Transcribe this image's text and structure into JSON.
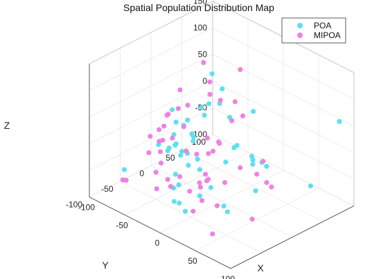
{
  "chart_data": {
    "type": "scatter",
    "projection": "3d",
    "title": "Spatial Population Distribution Map",
    "xlabel": "X",
    "ylabel": "Y",
    "zlabel": "Z",
    "xlim": [
      -100,
      100
    ],
    "ylim": [
      -100,
      100
    ],
    "zlim": [
      -100,
      150
    ],
    "xticks": [
      "-100",
      "-50",
      "0",
      "50",
      "100"
    ],
    "yticks": [
      "-100",
      "-50",
      "0",
      "50",
      "100"
    ],
    "zticks": [
      "-100",
      "-50",
      "0",
      "50",
      "100",
      "150"
    ],
    "grid": true,
    "legend_position": "top-right",
    "series": [
      {
        "name": "POA",
        "color": "#5ee0ee",
        "points": [
          [
            3,
            -81,
            75
          ],
          [
            4,
            -66,
            84
          ],
          [
            -60,
            48,
            15
          ],
          [
            -47,
            21,
            33
          ],
          [
            -66,
            60,
            60
          ],
          [
            -56,
            -16,
            44
          ],
          [
            -26,
            81,
            4
          ],
          [
            -46,
            -14,
            -36
          ],
          [
            -78,
            -13,
            -38
          ],
          [
            -36,
            -44,
            2
          ],
          [
            -21,
            -54,
            -57
          ],
          [
            -82,
            66,
            -32
          ],
          [
            -1,
            -76,
            -56
          ],
          [
            -47,
            74,
            -74
          ],
          [
            -73,
            8,
            -48
          ],
          [
            -58,
            2,
            -46
          ],
          [
            34,
            -98,
            -38
          ],
          [
            -63,
            69,
            1
          ],
          [
            40,
            3,
            10
          ],
          [
            19,
            3,
            16
          ],
          [
            -11,
            -33,
            33
          ],
          [
            -36,
            -5,
            -8
          ],
          [
            -62,
            84,
            -33
          ],
          [
            -6,
            -68,
            -13
          ],
          [
            61,
            3,
            5
          ],
          [
            -18,
            -49,
            -52
          ],
          [
            24,
            -63,
            13
          ],
          [
            -77,
            1,
            -57
          ],
          [
            -1,
            -38,
            1
          ],
          [
            70,
            -15,
            29
          ],
          [
            17,
            -13,
            -7
          ],
          [
            46,
            -2,
            10
          ],
          [
            7,
            -82,
            61
          ],
          [
            88,
            90,
            56
          ],
          [
            -8,
            10,
            100
          ],
          [
            31,
            -53,
            -22
          ],
          [
            -9,
            -45,
            73
          ],
          [
            17,
            31,
            -37
          ],
          [
            62,
            -16,
            -29
          ],
          [
            98,
            32,
            -24
          ],
          [
            37,
            -39,
            -61
          ],
          [
            -27,
            -43,
            56
          ],
          [
            -30,
            -14,
            15
          ],
          [
            -11,
            -43,
            8
          ],
          [
            -74,
            -73,
            -47
          ],
          [
            -4,
            -31,
            -74
          ],
          [
            -28,
            -22,
            -38
          ],
          [
            -13,
            -54,
            -80
          ],
          [
            64,
            -64,
            -39
          ]
        ]
      },
      {
        "name": "MIPOA",
        "color": "#ee82e2",
        "points": [
          [
            -100,
            21,
            -38
          ],
          [
            -52,
            76,
            -28
          ],
          [
            -39,
            79,
            -12
          ],
          [
            -55,
            8,
            39
          ],
          [
            -22,
            2,
            3
          ],
          [
            -76,
            68,
            10
          ],
          [
            -16,
            40,
            53
          ],
          [
            -66,
            -11,
            26
          ],
          [
            -99,
            46,
            16
          ],
          [
            -78,
            60,
            73
          ],
          [
            1,
            -84,
            -22
          ],
          [
            -57,
            -5,
            39
          ],
          [
            -49,
            -62,
            -5
          ],
          [
            -30,
            -23,
            -12
          ],
          [
            -15,
            -84,
            52
          ],
          [
            -45,
            -55,
            -43
          ],
          [
            -55,
            -17,
            -8
          ],
          [
            -16,
            -8,
            -55
          ],
          [
            -41,
            45,
            36
          ],
          [
            -73,
            -5,
            16
          ],
          [
            -28,
            18,
            -35
          ],
          [
            -72,
            -17,
            -45
          ],
          [
            -98,
            93,
            4
          ],
          [
            3,
            -7,
            15
          ],
          [
            -83,
            -65,
            -77
          ],
          [
            46,
            -60,
            -42
          ],
          [
            -37,
            -63,
            -64
          ],
          [
            -75,
            -69,
            -70
          ],
          [
            -13,
            -53,
            -31
          ],
          [
            -2,
            -96,
            27
          ],
          [
            -32,
            -59,
            28
          ],
          [
            55,
            4,
            10
          ],
          [
            22,
            -47,
            -16
          ],
          [
            -10,
            -10,
            -11
          ],
          [
            -40,
            76,
            76
          ],
          [
            -45,
            -10,
            16
          ],
          [
            85,
            -48,
            -48
          ],
          [
            56,
            -79,
            -77
          ],
          [
            32,
            -71,
            -10
          ],
          [
            28,
            -64,
            -42
          ],
          [
            1,
            -53,
            -49
          ],
          [
            1,
            29,
            -53
          ],
          [
            14,
            -52,
            -25
          ],
          [
            6,
            -31,
            -39
          ],
          [
            7,
            -3,
            -58
          ],
          [
            27,
            26,
            -46
          ],
          [
            7,
            -13,
            24
          ],
          [
            68,
            -5,
            -16
          ],
          [
            59,
            13,
            -41
          ],
          [
            -10,
            -29,
            -1
          ],
          [
            -48,
            -61,
            26
          ],
          [
            -31,
            -52,
            -49
          ],
          [
            12,
            -60,
            -75
          ],
          [
            -100,
            13,
            -40
          ]
        ]
      }
    ]
  }
}
